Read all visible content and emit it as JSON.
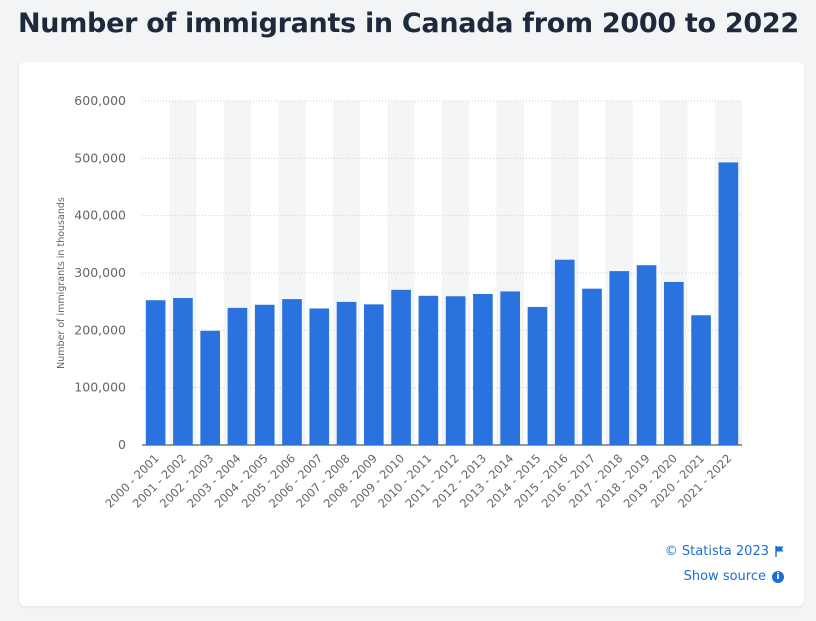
{
  "page": {
    "title": "Number of immigrants in Canada from 2000 to 2022"
  },
  "footer": {
    "credit": "© Statista 2023",
    "show_source": "Show source",
    "flag_icon": "flag-icon",
    "info_icon": "info-icon",
    "info_glyph": "i"
  },
  "colors": {
    "bar": "#2a72de",
    "band": "#f4f5f7",
    "grid": "#c9ccd1",
    "axis_text": "#666666"
  },
  "chart_data": {
    "type": "bar",
    "title": "Number of immigrants in Canada from 2000 to 2022",
    "ylabel": "Number of immigrants in thousands",
    "xlabel": "",
    "ylim": [
      0,
      600000
    ],
    "yticks": [
      0,
      100000,
      200000,
      300000,
      400000,
      500000,
      600000
    ],
    "ytick_labels": [
      "0",
      "100,000",
      "200,000",
      "300,000",
      "400,000",
      "500,000",
      "600,000"
    ],
    "grid": true,
    "categories": [
      "2000 - 2001",
      "2001 - 2002",
      "2002 - 2003",
      "2003 - 2004",
      "2004 - 2005",
      "2005 - 2006",
      "2006 - 2007",
      "2007 - 2008",
      "2008 - 2009",
      "2009 - 2010",
      "2010 - 2011",
      "2011 - 2012",
      "2012 - 2013",
      "2013 - 2014",
      "2014 - 2015",
      "2015 - 2016",
      "2016 - 2017",
      "2017 - 2018",
      "2018 - 2019",
      "2019 - 2020",
      "2020 - 2021",
      "2021 - 2022"
    ],
    "values": [
      252500,
      256400,
      199200,
      239100,
      244600,
      254400,
      238100,
      249600,
      245300,
      270600,
      260200,
      259400,
      263400,
      267900,
      240800,
      323200,
      272700,
      303300,
      313600,
      284400,
      226300,
      492900
    ]
  }
}
